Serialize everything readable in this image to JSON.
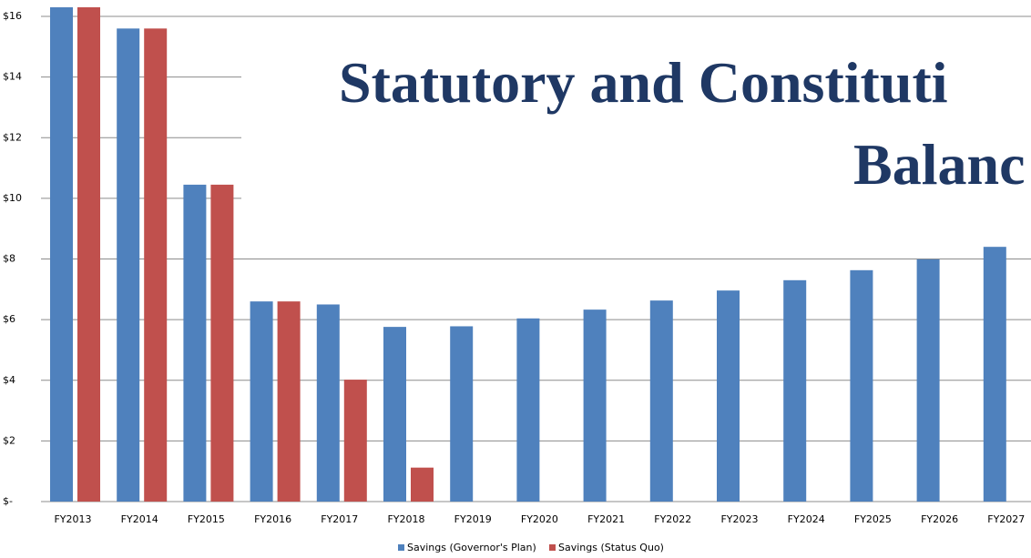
{
  "chart_data": {
    "type": "bar",
    "title_lines": [
      "Statutory and Constituti",
      "Balanc"
    ],
    "categories": [
      "FY2013",
      "FY2014",
      "FY2015",
      "FY2016",
      "FY2017",
      "FY2018",
      "FY2019",
      "FY2020",
      "FY2021",
      "FY2022",
      "FY2023",
      "FY2024",
      "FY2025",
      "FY2026",
      "FY2027"
    ],
    "series": [
      {
        "name": "Savings (Governor's Plan)",
        "color": "#4f81bd",
        "values": [
          16.3,
          15.6,
          10.45,
          6.6,
          6.5,
          5.76,
          5.78,
          6.04,
          6.33,
          6.63,
          6.96,
          7.3,
          7.63,
          7.99,
          8.4
        ]
      },
      {
        "name": "Savings (Status Quo)",
        "color": "#c0504d",
        "values": [
          16.3,
          15.6,
          10.45,
          6.6,
          4.02,
          1.12,
          null,
          null,
          null,
          null,
          null,
          null,
          null,
          null,
          null
        ]
      }
    ],
    "ylim": [
      0,
      16
    ],
    "yticks": [
      {
        "value": 0,
        "label": "$-"
      },
      {
        "value": 2,
        "label": "$2"
      },
      {
        "value": 4,
        "label": "$4"
      },
      {
        "value": 6,
        "label": "$6"
      },
      {
        "value": 8,
        "label": "$8"
      },
      {
        "value": 10,
        "label": "$10"
      },
      {
        "value": 12,
        "label": "$12"
      },
      {
        "value": 14,
        "label": "$14"
      },
      {
        "value": 16,
        "label": "$16"
      }
    ],
    "grid": true,
    "legend": "bottom"
  }
}
